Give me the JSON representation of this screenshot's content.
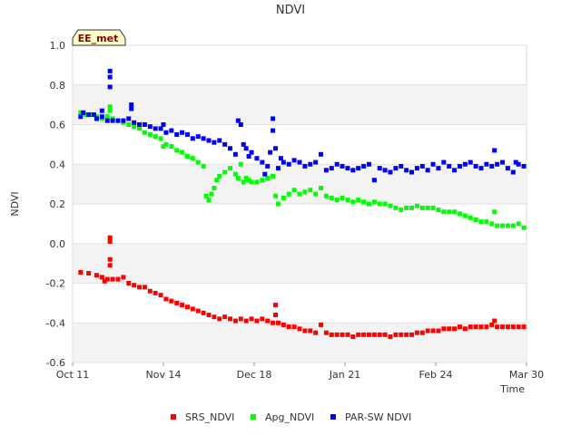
{
  "chart_data": {
    "type": "scatter",
    "title": "NDVI",
    "xlabel": "Time",
    "ylabel": "NDVI",
    "badge": "EE_met",
    "ylim": [
      -0.6,
      1.0
    ],
    "xlim": [
      0,
      170
    ],
    "y_ticks": [
      {
        "value": -0.6,
        "label": "-0.6"
      },
      {
        "value": -0.4,
        "label": "-0.4"
      },
      {
        "value": -0.2,
        "label": "-0.2"
      },
      {
        "value": 0.0,
        "label": "0.0"
      },
      {
        "value": 0.2,
        "label": "0.2"
      },
      {
        "value": 0.4,
        "label": "0.4"
      },
      {
        "value": 0.6,
        "label": "0.6"
      },
      {
        "value": 0.8,
        "label": "0.8"
      },
      {
        "value": 1.0,
        "label": "1.0"
      }
    ],
    "x_ticks": [
      {
        "value": 0,
        "label": "Oct 11"
      },
      {
        "value": 34,
        "label": "Nov 14"
      },
      {
        "value": 68,
        "label": "Dec 18"
      },
      {
        "value": 102,
        "label": "Jan 21"
      },
      {
        "value": 136,
        "label": "Feb 24"
      },
      {
        "value": 170,
        "label": "Mar 30"
      }
    ],
    "series": [
      {
        "name": "SRS_NDVI",
        "color": "#ff0000",
        "points": [
          [
            3,
            -0.145
          ],
          [
            6,
            -0.15
          ],
          [
            9,
            -0.16
          ],
          [
            11,
            -0.17
          ],
          [
            12,
            -0.19
          ],
          [
            13,
            -0.18
          ],
          [
            14,
            0.03
          ],
          [
            14,
            0.01
          ],
          [
            14,
            -0.08
          ],
          [
            14,
            -0.11
          ],
          [
            15,
            -0.18
          ],
          [
            17,
            -0.18
          ],
          [
            19,
            -0.17
          ],
          [
            21,
            -0.2
          ],
          [
            23,
            -0.21
          ],
          [
            25,
            -0.22
          ],
          [
            27,
            -0.22
          ],
          [
            29,
            -0.24
          ],
          [
            31,
            -0.25
          ],
          [
            33,
            -0.26
          ],
          [
            35,
            -0.28
          ],
          [
            37,
            -0.29
          ],
          [
            39,
            -0.3
          ],
          [
            41,
            -0.31
          ],
          [
            43,
            -0.32
          ],
          [
            45,
            -0.33
          ],
          [
            47,
            -0.34
          ],
          [
            49,
            -0.35
          ],
          [
            51,
            -0.36
          ],
          [
            53,
            -0.37
          ],
          [
            55,
            -0.38
          ],
          [
            57,
            -0.37
          ],
          [
            59,
            -0.38
          ],
          [
            61,
            -0.39
          ],
          [
            63,
            -0.38
          ],
          [
            65,
            -0.39
          ],
          [
            67,
            -0.38
          ],
          [
            69,
            -0.39
          ],
          [
            71,
            -0.38
          ],
          [
            73,
            -0.39
          ],
          [
            75,
            -0.4
          ],
          [
            76,
            -0.31
          ],
          [
            76,
            -0.36
          ],
          [
            77,
            -0.4
          ],
          [
            79,
            -0.41
          ],
          [
            81,
            -0.42
          ],
          [
            83,
            -0.42
          ],
          [
            85,
            -0.43
          ],
          [
            87,
            -0.44
          ],
          [
            89,
            -0.44
          ],
          [
            91,
            -0.45
          ],
          [
            93,
            -0.41
          ],
          [
            95,
            -0.45
          ],
          [
            97,
            -0.46
          ],
          [
            99,
            -0.46
          ],
          [
            101,
            -0.46
          ],
          [
            103,
            -0.46
          ],
          [
            105,
            -0.47
          ],
          [
            107,
            -0.46
          ],
          [
            109,
            -0.46
          ],
          [
            111,
            -0.46
          ],
          [
            113,
            -0.46
          ],
          [
            115,
            -0.46
          ],
          [
            117,
            -0.46
          ],
          [
            119,
            -0.47
          ],
          [
            121,
            -0.46
          ],
          [
            123,
            -0.46
          ],
          [
            125,
            -0.46
          ],
          [
            127,
            -0.46
          ],
          [
            129,
            -0.45
          ],
          [
            131,
            -0.45
          ],
          [
            133,
            -0.44
          ],
          [
            135,
            -0.44
          ],
          [
            137,
            -0.44
          ],
          [
            139,
            -0.43
          ],
          [
            141,
            -0.43
          ],
          [
            143,
            -0.43
          ],
          [
            145,
            -0.42
          ],
          [
            147,
            -0.43
          ],
          [
            149,
            -0.42
          ],
          [
            151,
            -0.42
          ],
          [
            153,
            -0.42
          ],
          [
            155,
            -0.42
          ],
          [
            157,
            -0.41
          ],
          [
            158,
            -0.39
          ],
          [
            159,
            -0.42
          ],
          [
            161,
            -0.42
          ],
          [
            163,
            -0.42
          ],
          [
            165,
            -0.42
          ],
          [
            167,
            -0.42
          ],
          [
            169,
            -0.42
          ]
        ]
      },
      {
        "name": "Apg_NDVI",
        "color": "#00ff00",
        "points": [
          [
            3,
            0.66
          ],
          [
            5,
            0.65
          ],
          [
            7,
            0.65
          ],
          [
            9,
            0.64
          ],
          [
            11,
            0.63
          ],
          [
            13,
            0.64
          ],
          [
            14,
            0.69
          ],
          [
            14,
            0.67
          ],
          [
            15,
            0.63
          ],
          [
            17,
            0.62
          ],
          [
            19,
            0.61
          ],
          [
            21,
            0.6
          ],
          [
            23,
            0.59
          ],
          [
            25,
            0.58
          ],
          [
            27,
            0.56
          ],
          [
            29,
            0.55
          ],
          [
            31,
            0.54
          ],
          [
            33,
            0.53
          ],
          [
            34,
            0.49
          ],
          [
            35,
            0.5
          ],
          [
            37,
            0.49
          ],
          [
            39,
            0.47
          ],
          [
            41,
            0.46
          ],
          [
            43,
            0.44
          ],
          [
            45,
            0.43
          ],
          [
            47,
            0.41
          ],
          [
            49,
            0.39
          ],
          [
            50,
            0.24
          ],
          [
            51,
            0.22
          ],
          [
            52,
            0.25
          ],
          [
            53,
            0.28
          ],
          [
            54,
            0.32
          ],
          [
            55,
            0.34
          ],
          [
            57,
            0.36
          ],
          [
            59,
            0.38
          ],
          [
            61,
            0.35
          ],
          [
            62,
            0.33
          ],
          [
            63,
            0.4
          ],
          [
            64,
            0.31
          ],
          [
            65,
            0.33
          ],
          [
            66,
            0.32
          ],
          [
            67,
            0.31
          ],
          [
            69,
            0.31
          ],
          [
            71,
            0.32
          ],
          [
            73,
            0.33
          ],
          [
            75,
            0.34
          ],
          [
            76,
            0.24
          ],
          [
            77,
            0.2
          ],
          [
            79,
            0.23
          ],
          [
            81,
            0.25
          ],
          [
            83,
            0.27
          ],
          [
            85,
            0.25
          ],
          [
            87,
            0.26
          ],
          [
            89,
            0.27
          ],
          [
            91,
            0.25
          ],
          [
            93,
            0.28
          ],
          [
            95,
            0.24
          ],
          [
            97,
            0.23
          ],
          [
            99,
            0.22
          ],
          [
            101,
            0.23
          ],
          [
            103,
            0.22
          ],
          [
            105,
            0.21
          ],
          [
            107,
            0.22
          ],
          [
            109,
            0.21
          ],
          [
            111,
            0.2
          ],
          [
            113,
            0.21
          ],
          [
            115,
            0.2
          ],
          [
            117,
            0.2
          ],
          [
            119,
            0.19
          ],
          [
            121,
            0.18
          ],
          [
            123,
            0.17
          ],
          [
            125,
            0.18
          ],
          [
            127,
            0.18
          ],
          [
            129,
            0.19
          ],
          [
            131,
            0.18
          ],
          [
            133,
            0.18
          ],
          [
            135,
            0.18
          ],
          [
            137,
            0.17
          ],
          [
            139,
            0.16
          ],
          [
            141,
            0.16
          ],
          [
            143,
            0.16
          ],
          [
            145,
            0.15
          ],
          [
            147,
            0.14
          ],
          [
            149,
            0.13
          ],
          [
            151,
            0.12
          ],
          [
            153,
            0.11
          ],
          [
            155,
            0.11
          ],
          [
            157,
            0.1
          ],
          [
            158,
            0.16
          ],
          [
            159,
            0.09
          ],
          [
            161,
            0.09
          ],
          [
            163,
            0.09
          ],
          [
            165,
            0.09
          ],
          [
            167,
            0.1
          ],
          [
            169,
            0.08
          ]
        ]
      },
      {
        "name": "PAR-SW NDVI",
        "color": "#0000ff",
        "points": [
          [
            3,
            0.64
          ],
          [
            4,
            0.66
          ],
          [
            6,
            0.65
          ],
          [
            8,
            0.65
          ],
          [
            9,
            0.63
          ],
          [
            11,
            0.64
          ],
          [
            11,
            0.67
          ],
          [
            13,
            0.62
          ],
          [
            14,
            0.87
          ],
          [
            14,
            0.84
          ],
          [
            14,
            0.79
          ],
          [
            15,
            0.62
          ],
          [
            17,
            0.62
          ],
          [
            19,
            0.62
          ],
          [
            21,
            0.63
          ],
          [
            22,
            0.7
          ],
          [
            22,
            0.68
          ],
          [
            23,
            0.61
          ],
          [
            25,
            0.6
          ],
          [
            27,
            0.6
          ],
          [
            29,
            0.59
          ],
          [
            31,
            0.58
          ],
          [
            33,
            0.58
          ],
          [
            34,
            0.6
          ],
          [
            35,
            0.56
          ],
          [
            37,
            0.57
          ],
          [
            39,
            0.55
          ],
          [
            41,
            0.56
          ],
          [
            43,
            0.55
          ],
          [
            45,
            0.53
          ],
          [
            47,
            0.54
          ],
          [
            49,
            0.53
          ],
          [
            51,
            0.52
          ],
          [
            53,
            0.51
          ],
          [
            55,
            0.52
          ],
          [
            57,
            0.5
          ],
          [
            59,
            0.48
          ],
          [
            61,
            0.45
          ],
          [
            62,
            0.62
          ],
          [
            63,
            0.6
          ],
          [
            64,
            0.5
          ],
          [
            65,
            0.48
          ],
          [
            66,
            0.44
          ],
          [
            67,
            0.46
          ],
          [
            69,
            0.43
          ],
          [
            71,
            0.41
          ],
          [
            72,
            0.35
          ],
          [
            73,
            0.39
          ],
          [
            74,
            0.46
          ],
          [
            75,
            0.63
          ],
          [
            75,
            0.57
          ],
          [
            76,
            0.48
          ],
          [
            77,
            0.38
          ],
          [
            78,
            0.43
          ],
          [
            79,
            0.41
          ],
          [
            81,
            0.4
          ],
          [
            83,
            0.42
          ],
          [
            85,
            0.41
          ],
          [
            87,
            0.39
          ],
          [
            89,
            0.4
          ],
          [
            91,
            0.41
          ],
          [
            93,
            0.45
          ],
          [
            95,
            0.37
          ],
          [
            97,
            0.38
          ],
          [
            99,
            0.4
          ],
          [
            101,
            0.39
          ],
          [
            103,
            0.38
          ],
          [
            105,
            0.37
          ],
          [
            107,
            0.38
          ],
          [
            109,
            0.39
          ],
          [
            111,
            0.4
          ],
          [
            113,
            0.32
          ],
          [
            115,
            0.38
          ],
          [
            117,
            0.37
          ],
          [
            119,
            0.36
          ],
          [
            121,
            0.38
          ],
          [
            123,
            0.39
          ],
          [
            125,
            0.37
          ],
          [
            127,
            0.36
          ],
          [
            129,
            0.38
          ],
          [
            131,
            0.39
          ],
          [
            133,
            0.37
          ],
          [
            135,
            0.4
          ],
          [
            137,
            0.38
          ],
          [
            139,
            0.41
          ],
          [
            141,
            0.39
          ],
          [
            143,
            0.37
          ],
          [
            145,
            0.39
          ],
          [
            147,
            0.4
          ],
          [
            149,
            0.41
          ],
          [
            151,
            0.39
          ],
          [
            153,
            0.38
          ],
          [
            155,
            0.4
          ],
          [
            157,
            0.39
          ],
          [
            158,
            0.47
          ],
          [
            159,
            0.4
          ],
          [
            161,
            0.41
          ],
          [
            163,
            0.38
          ],
          [
            165,
            0.36
          ],
          [
            166,
            0.41
          ],
          [
            167,
            0.4
          ],
          [
            169,
            0.39
          ]
        ]
      }
    ]
  }
}
